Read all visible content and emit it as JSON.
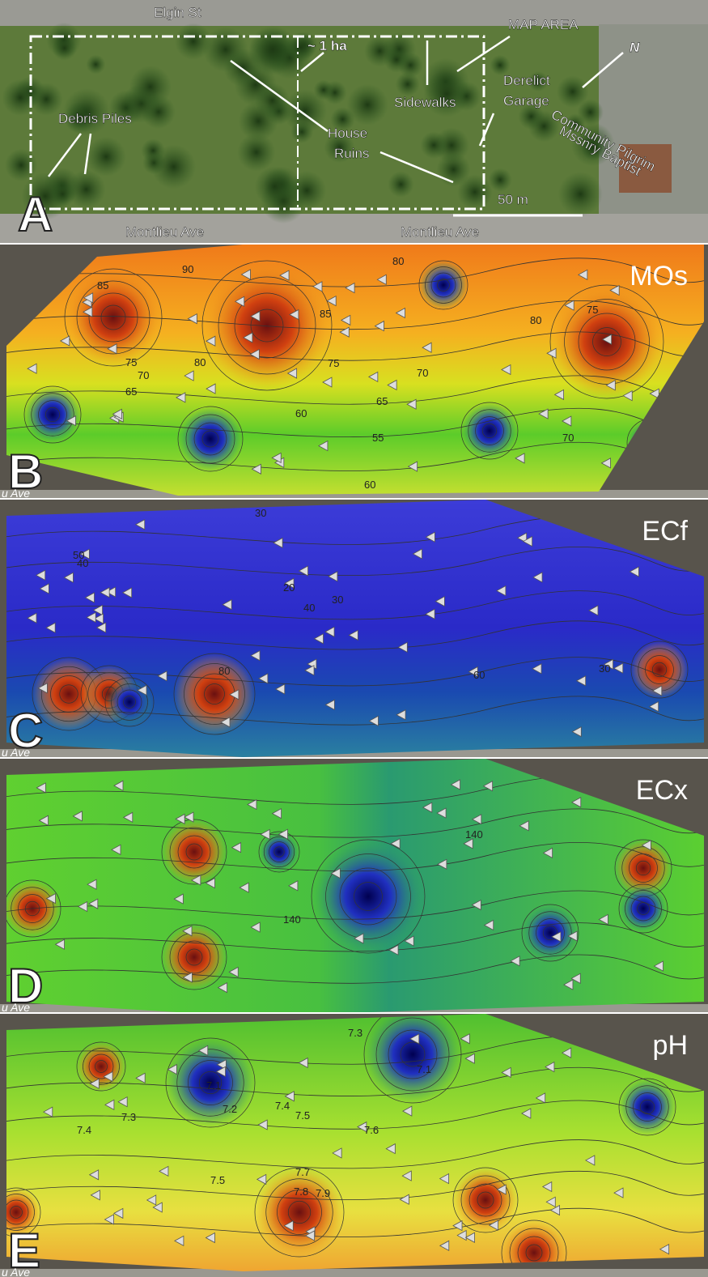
{
  "panel_a": {
    "letter": "A",
    "elgin": "Elgin St",
    "montlieu": [
      "Montlieu Ave",
      "Montlieu Ave"
    ],
    "map_area": "MAP AREA",
    "north": "N",
    "area": "~ 1 ha",
    "sidewalks": "Sidewalks",
    "garage": [
      "Derelict",
      "Garage"
    ],
    "debris": "Debris Piles",
    "ruins": [
      "House",
      "Ruins"
    ],
    "church": [
      "Community Pilgrim",
      "Mssnry Baptist"
    ],
    "scale": "50 m"
  },
  "panels": [
    {
      "letter": "B",
      "title": "MOs",
      "street": "u Ave",
      "contour_labels": [
        "85",
        "90",
        "85",
        "80",
        "75",
        "80",
        "75",
        "70",
        "65",
        "80",
        "75",
        "70",
        "65",
        "60",
        "55",
        "60",
        "70"
      ]
    },
    {
      "letter": "C",
      "title": "ECf",
      "street": "u Ave",
      "contour_labels": [
        "30",
        "50",
        "20",
        "40",
        "30",
        "40",
        "80",
        "60",
        "30"
      ]
    },
    {
      "letter": "D",
      "title": "ECx",
      "street": "u Ave",
      "contour_labels": [
        "140",
        "140"
      ]
    },
    {
      "letter": "E",
      "title": "pH",
      "street": "u Ave",
      "contour_labels": [
        "7.3",
        "7.1",
        "7.1",
        "7.2",
        "7.3",
        "7.4",
        "7.4",
        "7.5",
        "7.6",
        "7.5",
        "7.7",
        "7.8",
        "7.9"
      ]
    }
  ]
}
